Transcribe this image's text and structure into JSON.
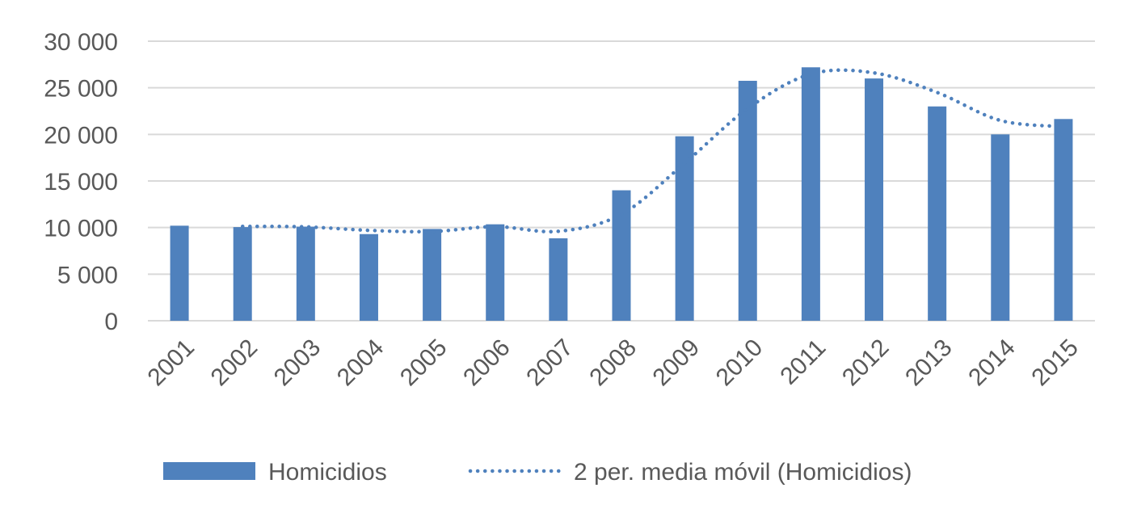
{
  "chart_data": {
    "type": "bar",
    "title": "",
    "xlabel": "",
    "ylabel": "",
    "categories": [
      "2001",
      "2002",
      "2003",
      "2004",
      "2005",
      "2006",
      "2007",
      "2008",
      "2009",
      "2010",
      "2011",
      "2012",
      "2013",
      "2014",
      "2015"
    ],
    "series": [
      {
        "name": "Homicidios",
        "type": "bar",
        "color": "#4F81BD",
        "values": [
          10200,
          10050,
          10100,
          9300,
          9850,
          10350,
          8850,
          14000,
          19800,
          25750,
          27200,
          26000,
          23000,
          20000,
          21650
        ]
      },
      {
        "name": "2 per. media móvil (Homicidios)",
        "type": "line",
        "style": "dotted",
        "color": "#4F81BD",
        "values": [
          null,
          10125,
          10075,
          9700,
          9575,
          10100,
          9600,
          11425,
          16900,
          22775,
          26475,
          26600,
          24500,
          21500,
          20825
        ]
      }
    ],
    "ylim": [
      0,
      30000
    ],
    "yticks": [
      0,
      5000,
      10000,
      15000,
      20000,
      25000,
      30000
    ],
    "ytick_labels": [
      "0",
      "5 000",
      "10 000",
      "15 000",
      "20 000",
      "25 000",
      "30 000"
    ],
    "grid": true,
    "legend": "bottom"
  }
}
